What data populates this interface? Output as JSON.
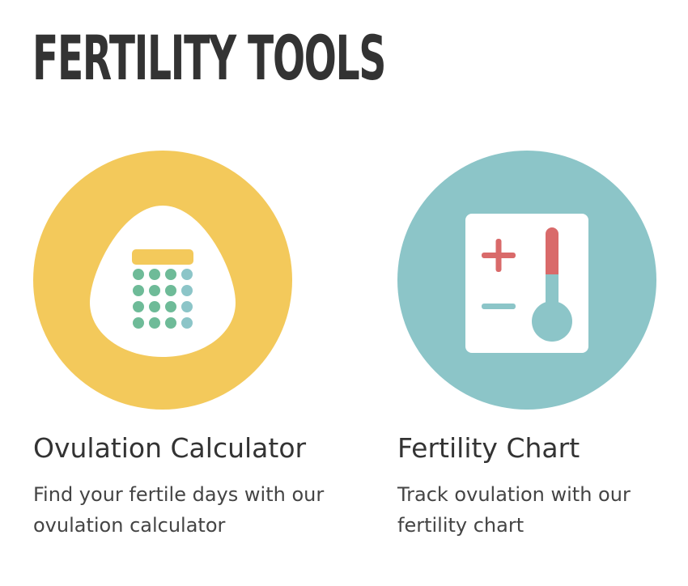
{
  "page": {
    "title": "FERTILITY TOOLS"
  },
  "tools": [
    {
      "title": "Ovulation Calculator",
      "description": "Find your fertile days with our ovulation calculator",
      "icon": "egg-calculator-icon",
      "circle_color": "#F3C95B"
    },
    {
      "title": "Fertility Chart",
      "description": "Track ovulation with our fertility chart",
      "icon": "thermometer-chart-icon",
      "circle_color": "#8CC5C8"
    }
  ],
  "colors": {
    "title_text": "#333333",
    "egg_white": "#FFFFFF",
    "calc_display": "#F3C95B",
    "calc_green": "#6EBB98",
    "calc_blue": "#8CC5C8",
    "plus_red": "#D96A6A",
    "minus_blue": "#8CC5C8"
  }
}
